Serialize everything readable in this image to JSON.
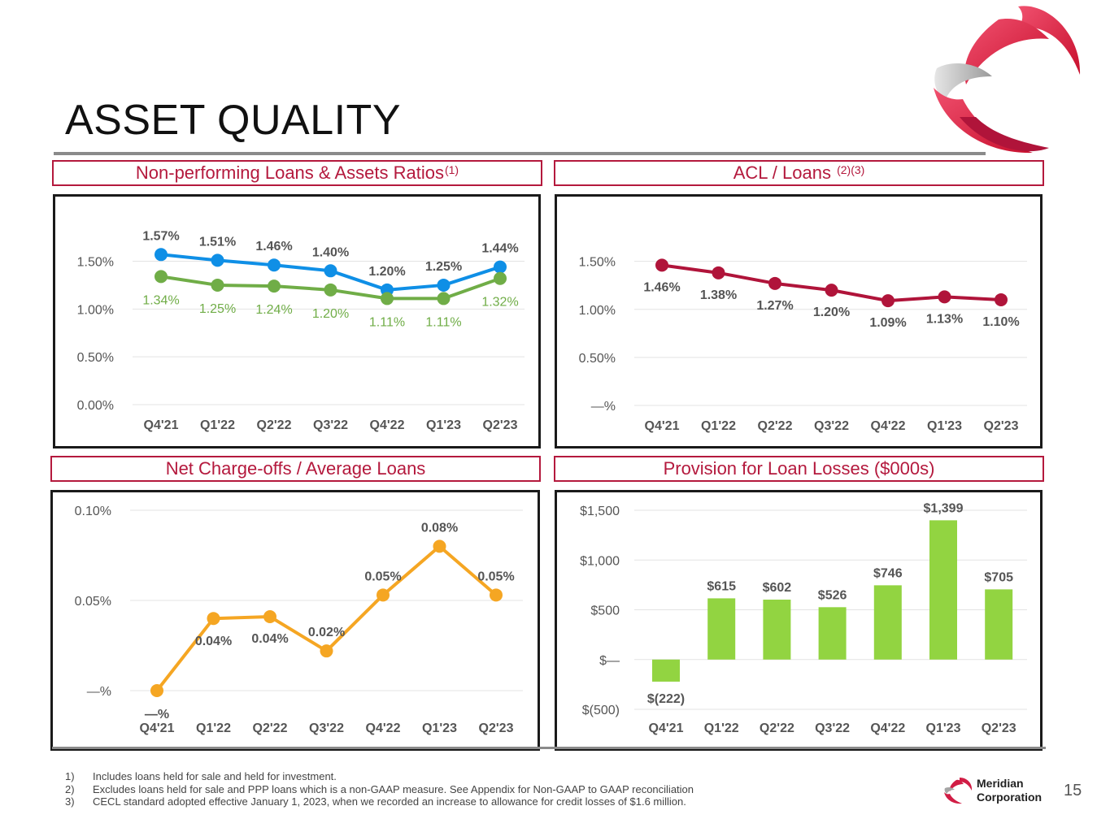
{
  "slide": {
    "title": "ASSET QUALITY",
    "page_number": "15",
    "brand_name_line1": "Meridian",
    "brand_name_line2": "Corporation",
    "footnotes": [
      {
        "num": "1)",
        "text": "Includes loans held for sale and held for investment."
      },
      {
        "num": "2)",
        "text": "Excludes loans held for sale and PPP loans which is a non-GAAP measure. See Appendix for Non-GAAP to GAAP reconciliation"
      },
      {
        "num": "3)",
        "text": "CECL standard adopted effective January 1, 2023, when we recorded an increase to allowance for credit losses of $1.6 million."
      }
    ],
    "colors": {
      "accent": "#b4193d",
      "blue": "#0f8fe6",
      "green": "#70ad47",
      "crimson": "#b0143a",
      "orange": "#f5a623",
      "lime": "#92d441"
    }
  },
  "chart_data": [
    {
      "type": "line",
      "title": "Non-performing Loans & Assets Ratios",
      "title_note": "(1)",
      "categories": [
        "Q4'21",
        "Q1'22",
        "Q2'22",
        "Q3'22",
        "Q4'22",
        "Q1'23",
        "Q2'23"
      ],
      "series": [
        {
          "values": [
            1.57,
            1.51,
            1.46,
            1.4,
            1.2,
            1.25,
            1.44
          ],
          "labels": [
            "1.57%",
            "1.51%",
            "1.46%",
            "1.40%",
            "1.20%",
            "1.25%",
            "1.44%"
          ],
          "color": "#0f8fe6"
        },
        {
          "values": [
            1.34,
            1.25,
            1.24,
            1.2,
            1.11,
            1.11,
            1.32
          ],
          "labels": [
            "1.34%",
            "1.25%",
            "1.24%",
            "1.20%",
            "1.11%",
            "1.11%",
            "1.32%"
          ],
          "color": "#70ad47"
        }
      ],
      "yticks": [
        0,
        0.5,
        1.0,
        1.5
      ],
      "ytick_labels": [
        "0.00%",
        "0.50%",
        "1.00%",
        "1.50%"
      ],
      "ylim": [
        0,
        1.7
      ],
      "grid": true
    },
    {
      "type": "line",
      "title": "ACL / Loans",
      "title_note": "(2)(3)",
      "categories": [
        "Q4'21",
        "Q1'22",
        "Q2'22",
        "Q3'22",
        "Q4'22",
        "Q1'23",
        "Q2'23"
      ],
      "series": [
        {
          "values": [
            1.46,
            1.38,
            1.27,
            1.2,
            1.09,
            1.13,
            1.1
          ],
          "labels": [
            "1.46%",
            "1.38%",
            "1.27%",
            "1.20%",
            "1.09%",
            "1.13%",
            "1.10%"
          ],
          "color": "#b0143a"
        }
      ],
      "yticks": [
        0,
        0.5,
        1.0,
        1.5
      ],
      "ytick_labels": [
        "—%",
        "0.50%",
        "1.00%",
        "1.50%"
      ],
      "ylim": [
        0,
        1.7
      ],
      "grid": true
    },
    {
      "type": "line",
      "title": "Net Charge-offs / Average Loans",
      "categories": [
        "Q4'21",
        "Q1'22",
        "Q2'22",
        "Q3'22",
        "Q4'22",
        "Q1'23",
        "Q2'23"
      ],
      "series": [
        {
          "values": [
            0.0,
            0.04,
            0.041,
            0.022,
            0.053,
            0.08,
            0.053
          ],
          "labels": [
            "—%",
            "0.04%",
            "0.04%",
            "0.02%",
            "0.05%",
            "0.08%",
            "0.05%"
          ],
          "color": "#f5a623"
        }
      ],
      "yticks": [
        0,
        0.05,
        0.1
      ],
      "ytick_labels": [
        "—%",
        "0.05%",
        "0.10%"
      ],
      "ylim": [
        0,
        0.1
      ],
      "grid": true
    },
    {
      "type": "bar",
      "title": "Provision for Loan Losses ($000s)",
      "categories": [
        "Q4'21",
        "Q1'22",
        "Q2'22",
        "Q3'22",
        "Q4'22",
        "Q1'23",
        "Q2'23"
      ],
      "values": [
        -222,
        615,
        602,
        526,
        746,
        1399,
        705
      ],
      "labels": [
        "$(222)",
        "$615",
        "$602",
        "$526",
        "$746",
        "$1,399",
        "$705"
      ],
      "color": "#92d441",
      "yticks": [
        -500,
        0,
        500,
        1000,
        1500
      ],
      "ytick_labels": [
        "$(500)",
        "$—",
        "$500",
        "$1,000",
        "$1,500"
      ],
      "ylim": [
        -500,
        1500
      ],
      "grid": true
    }
  ]
}
